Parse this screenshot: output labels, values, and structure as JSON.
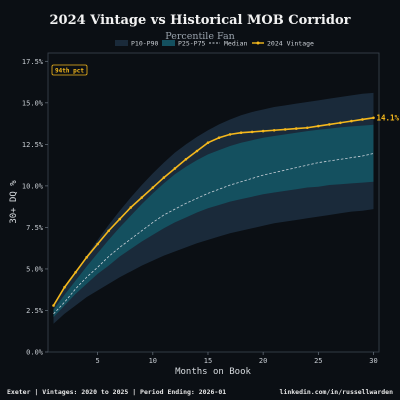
{
  "chart_data": {
    "type": "area",
    "title": "2024 Vintage vs Historical MOB Corridor",
    "subtitle": "Percentile Fan",
    "xlabel": "Months on Book",
    "ylabel": "30+ DQ %",
    "xlim": [
      0.5,
      30.5
    ],
    "ylim": [
      0,
      18
    ],
    "xticks": [
      5,
      10,
      15,
      20,
      25,
      30
    ],
    "yticks": [
      0,
      2.5,
      5,
      7.5,
      10,
      12.5,
      15,
      17.5
    ],
    "ytick_labels": [
      "0.0%",
      "2.5%",
      "5.0%",
      "7.5%",
      "10.0%",
      "12.5%",
      "15.0%",
      "17.5%"
    ],
    "grid": false,
    "legend_position": "top-center",
    "legend": {
      "p10_p90": "P10-P90",
      "p25_p75": "P25-P75",
      "median": "Median",
      "vintage": "2024 Vintage"
    },
    "x": [
      1,
      2,
      3,
      4,
      5,
      6,
      7,
      8,
      9,
      10,
      11,
      12,
      13,
      14,
      15,
      16,
      17,
      18,
      19,
      20,
      21,
      22,
      23,
      24,
      25,
      26,
      27,
      28,
      29,
      30
    ],
    "bands": {
      "p10": [
        1.7,
        2.3,
        2.8,
        3.3,
        3.7,
        4.1,
        4.5,
        4.85,
        5.2,
        5.5,
        5.8,
        6.05,
        6.3,
        6.55,
        6.75,
        6.95,
        7.15,
        7.3,
        7.45,
        7.6,
        7.75,
        7.85,
        7.95,
        8.05,
        8.15,
        8.25,
        8.35,
        8.45,
        8.5,
        8.6
      ],
      "p25": [
        2.1,
        2.8,
        3.5,
        4.1,
        4.7,
        5.2,
        5.75,
        6.2,
        6.65,
        7.05,
        7.45,
        7.8,
        8.1,
        8.4,
        8.65,
        8.85,
        9.05,
        9.2,
        9.35,
        9.5,
        9.6,
        9.7,
        9.8,
        9.9,
        9.95,
        10.05,
        10.1,
        10.15,
        10.2,
        10.25
      ],
      "median": [
        2.3,
        3.0,
        3.8,
        4.5,
        5.1,
        5.75,
        6.3,
        6.8,
        7.3,
        7.8,
        8.25,
        8.6,
        8.95,
        9.25,
        9.55,
        9.8,
        10.05,
        10.25,
        10.45,
        10.65,
        10.8,
        10.95,
        11.1,
        11.25,
        11.4,
        11.5,
        11.6,
        11.7,
        11.8,
        11.95
      ],
      "p75": [
        2.55,
        3.45,
        4.3,
        5.15,
        5.95,
        6.75,
        7.5,
        8.2,
        8.9,
        9.55,
        10.15,
        10.7,
        11.15,
        11.55,
        11.9,
        12.15,
        12.4,
        12.6,
        12.75,
        12.9,
        13.0,
        13.1,
        13.2,
        13.3,
        13.38,
        13.45,
        13.52,
        13.58,
        13.63,
        13.68
      ],
      "p90": [
        2.85,
        3.85,
        4.85,
        5.8,
        6.75,
        7.65,
        8.5,
        9.3,
        10.05,
        10.75,
        11.4,
        12.0,
        12.5,
        12.95,
        13.35,
        13.7,
        14.0,
        14.25,
        14.45,
        14.6,
        14.75,
        14.85,
        14.95,
        15.05,
        15.15,
        15.25,
        15.35,
        15.45,
        15.55,
        15.6
      ]
    },
    "series": [
      {
        "name": "2024 Vintage",
        "color": "#f5b81c",
        "values": [
          2.8,
          3.9,
          4.8,
          5.7,
          6.5,
          7.3,
          8.0,
          8.7,
          9.3,
          9.9,
          10.5,
          11.05,
          11.6,
          12.1,
          12.6,
          12.9,
          13.1,
          13.2,
          13.25,
          13.3,
          13.35,
          13.4,
          13.45,
          13.5,
          13.6,
          13.7,
          13.8,
          13.9,
          14.0,
          14.1
        ]
      }
    ],
    "end_label": "14.1%",
    "badge": "94th pct",
    "colors": {
      "p10_p90": "#1a2a3a",
      "p25_p75": "#14505f",
      "median": "#c8d0d8",
      "vintage": "#f5b81c",
      "background": "#0b0f14",
      "axis": "#6b7580"
    }
  },
  "footer": {
    "left": "Exeter | Vintages: 2020 to 2025 | Period Ending: 2026-01",
    "right": "linkedin.com/in/russellwarden"
  }
}
